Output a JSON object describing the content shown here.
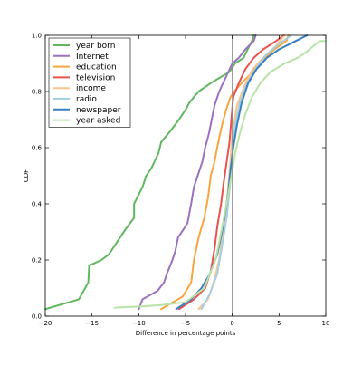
{
  "chart_data": {
    "type": "line",
    "title": "",
    "xlabel": "Difference in percentage points",
    "ylabel": "CDF",
    "xlim": [
      -20,
      10
    ],
    "ylim": [
      0.0,
      1.0
    ],
    "x_ticks": [
      -20,
      -15,
      -10,
      -5,
      0,
      5,
      10
    ],
    "y_ticks": [
      0.0,
      0.2,
      0.4,
      0.6,
      0.8,
      1.0
    ],
    "x_tick_labels": [
      "−20",
      "−15",
      "−10",
      "−5",
      "0",
      "5",
      "10"
    ],
    "y_tick_labels": [
      "0.0",
      "0.2",
      "0.4",
      "0.6",
      "0.8",
      "1.0"
    ],
    "grid": false,
    "reference_line_x": 0,
    "legend_position": "top-left",
    "series": [
      {
        "name": "year born",
        "color": "#5fb85f",
        "points": [
          [
            -20,
            0.025
          ],
          [
            -16.4,
            0.06
          ],
          [
            -15.4,
            0.12
          ],
          [
            -15.3,
            0.18
          ],
          [
            -14,
            0.2
          ],
          [
            -13.2,
            0.22
          ],
          [
            -11.4,
            0.31
          ],
          [
            -10.5,
            0.35
          ],
          [
            -10.5,
            0.4
          ],
          [
            -10.2,
            0.42
          ],
          [
            -9.6,
            0.46
          ],
          [
            -9.2,
            0.5
          ],
          [
            -8.6,
            0.53
          ],
          [
            -7.9,
            0.58
          ],
          [
            -7.6,
            0.62
          ],
          [
            -6.6,
            0.66
          ],
          [
            -5.7,
            0.7
          ],
          [
            -4.9,
            0.74
          ],
          [
            -4.6,
            0.76
          ],
          [
            -3.6,
            0.8
          ],
          [
            -2.3,
            0.83
          ],
          [
            -1.3,
            0.85
          ],
          [
            -0.3,
            0.87
          ],
          [
            0.3,
            0.9
          ],
          [
            1.2,
            0.92
          ],
          [
            1.5,
            0.94
          ],
          [
            2.1,
            0.98
          ],
          [
            2.3,
            1.0
          ]
        ]
      },
      {
        "name": "Internet",
        "color": "#9b72c2",
        "points": [
          [
            -10,
            0.025
          ],
          [
            -9.6,
            0.06
          ],
          [
            -8,
            0.09
          ],
          [
            -7.3,
            0.12
          ],
          [
            -7,
            0.15
          ],
          [
            -6.4,
            0.2
          ],
          [
            -6.1,
            0.23
          ],
          [
            -5.8,
            0.28
          ],
          [
            -4.8,
            0.33
          ],
          [
            -4.4,
            0.4
          ],
          [
            -4.1,
            0.46
          ],
          [
            -3.7,
            0.5
          ],
          [
            -3.2,
            0.55
          ],
          [
            -2.9,
            0.6
          ],
          [
            -2.5,
            0.65
          ],
          [
            -2.2,
            0.7
          ],
          [
            -1.9,
            0.75
          ],
          [
            -1.4,
            0.8
          ],
          [
            -0.7,
            0.85
          ],
          [
            0,
            0.9
          ],
          [
            0.7,
            0.92
          ],
          [
            1.4,
            0.95
          ],
          [
            2.3,
            0.98
          ],
          [
            2.5,
            1.0
          ]
        ]
      },
      {
        "name": "education",
        "color": "#f9a53f",
        "points": [
          [
            -7.6,
            0.025
          ],
          [
            -5.3,
            0.07
          ],
          [
            -4.4,
            0.12
          ],
          [
            -4.1,
            0.2
          ],
          [
            -3.6,
            0.28
          ],
          [
            -3,
            0.35
          ],
          [
            -2.6,
            0.42
          ],
          [
            -2.3,
            0.5
          ],
          [
            -1.9,
            0.55
          ],
          [
            -1.5,
            0.62
          ],
          [
            -1.1,
            0.68
          ],
          [
            -0.7,
            0.73
          ],
          [
            -0.2,
            0.78
          ],
          [
            0.2,
            0.8
          ],
          [
            1,
            0.83
          ],
          [
            1.9,
            0.86
          ],
          [
            2.8,
            0.9
          ],
          [
            3.5,
            0.92
          ],
          [
            4.5,
            0.95
          ],
          [
            5.8,
            0.98
          ],
          [
            6,
            1.0
          ]
        ]
      },
      {
        "name": "television",
        "color": "#e8524f",
        "points": [
          [
            -5.7,
            0.025
          ],
          [
            -4.1,
            0.06
          ],
          [
            -2.9,
            0.1
          ],
          [
            -2.3,
            0.16
          ],
          [
            -1.9,
            0.24
          ],
          [
            -1.6,
            0.32
          ],
          [
            -1.2,
            0.4
          ],
          [
            -0.9,
            0.48
          ],
          [
            -0.6,
            0.55
          ],
          [
            -0.3,
            0.62
          ],
          [
            -0.1,
            0.7
          ],
          [
            0.1,
            0.78
          ],
          [
            0.7,
            0.83
          ],
          [
            1.4,
            0.88
          ],
          [
            2.3,
            0.92
          ],
          [
            3.3,
            0.95
          ],
          [
            4.7,
            0.98
          ],
          [
            5.5,
            1.0
          ]
        ]
      },
      {
        "name": "income",
        "color": "#fbc48e",
        "points": [
          [
            -3.6,
            0.025
          ],
          [
            -2.6,
            0.06
          ],
          [
            -2,
            0.12
          ],
          [
            -1.4,
            0.2
          ],
          [
            -1,
            0.3
          ],
          [
            -0.6,
            0.4
          ],
          [
            -0.2,
            0.55
          ],
          [
            0,
            0.65
          ],
          [
            0.5,
            0.75
          ],
          [
            1.3,
            0.82
          ],
          [
            2.2,
            0.88
          ],
          [
            3.3,
            0.92
          ],
          [
            4.6,
            0.96
          ],
          [
            5.6,
            1.0
          ]
        ]
      },
      {
        "name": "radio",
        "color": "#a6cfe3",
        "points": [
          [
            -3.3,
            0.025
          ],
          [
            -2.4,
            0.08
          ],
          [
            -1.6,
            0.15
          ],
          [
            -1.1,
            0.25
          ],
          [
            -0.6,
            0.35
          ],
          [
            -0.2,
            0.48
          ],
          [
            0,
            0.58
          ],
          [
            0.3,
            0.68
          ],
          [
            0.8,
            0.76
          ],
          [
            1.6,
            0.83
          ],
          [
            2.5,
            0.88
          ],
          [
            3.6,
            0.93
          ],
          [
            5,
            0.97
          ],
          [
            6.3,
            1.0
          ]
        ]
      },
      {
        "name": "newspaper",
        "color": "#3a7fc0",
        "points": [
          [
            -6,
            0.025
          ],
          [
            -4.4,
            0.06
          ],
          [
            -3.3,
            0.1
          ],
          [
            -2.4,
            0.15
          ],
          [
            -1.6,
            0.22
          ],
          [
            -1.1,
            0.3
          ],
          [
            -0.7,
            0.38
          ],
          [
            -0.4,
            0.45
          ],
          [
            -0.2,
            0.52
          ],
          [
            0.1,
            0.6
          ],
          [
            0.5,
            0.68
          ],
          [
            1,
            0.76
          ],
          [
            1.7,
            0.83
          ],
          [
            2.6,
            0.88
          ],
          [
            3.7,
            0.92
          ],
          [
            5,
            0.95
          ],
          [
            6.8,
            0.98
          ],
          [
            8,
            1.0
          ]
        ]
      },
      {
        "name": "year asked",
        "color": "#b8e3a6",
        "points": [
          [
            -12.6,
            0.03
          ],
          [
            -9.5,
            0.035
          ],
          [
            -7.5,
            0.04
          ],
          [
            -5,
            0.05
          ],
          [
            -3,
            0.1
          ],
          [
            -2.4,
            0.15
          ],
          [
            -1.8,
            0.2
          ],
          [
            -1.3,
            0.28
          ],
          [
            -0.9,
            0.35
          ],
          [
            -0.5,
            0.42
          ],
          [
            -0.1,
            0.5
          ],
          [
            0.3,
            0.58
          ],
          [
            0.8,
            0.65
          ],
          [
            1.4,
            0.72
          ],
          [
            2.1,
            0.78
          ],
          [
            3,
            0.83
          ],
          [
            4.1,
            0.87
          ],
          [
            5.6,
            0.9
          ],
          [
            7,
            0.92
          ],
          [
            7.9,
            0.94
          ],
          [
            8.6,
            0.96
          ],
          [
            9.4,
            0.98
          ],
          [
            10,
            0.98
          ]
        ]
      }
    ]
  }
}
